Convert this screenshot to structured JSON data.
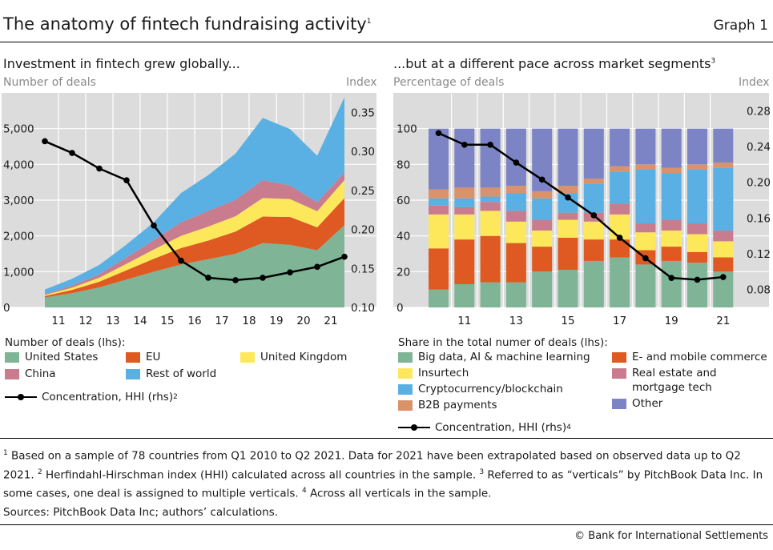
{
  "header": {
    "title": "The anatomy of fintech fundraising activity",
    "title_sup": "1",
    "graph_label": "Graph 1"
  },
  "left": {
    "title": "Investment in fintech grew globally...",
    "lhs_label": "Number of deals",
    "rhs_label": "Index",
    "legend_title": "Number of deals (lhs):",
    "legend": [
      "United States",
      "EU",
      "United Kingdom",
      "China",
      "Rest of world"
    ],
    "line_legend": "Concentration, HHI (rhs)",
    "line_legend_sup": "2"
  },
  "right": {
    "title": "...but at a different pace across market segments",
    "title_sup": "3",
    "lhs_label": "Percentage of deals",
    "rhs_label": "Index",
    "legend_title": "Share in the total numer of deals (lhs):",
    "legend": [
      "Big data, AI & machine learning",
      "E- and mobile commerce",
      "Insurtech",
      "Real estate and",
      "mortgage tech",
      "Cryptocurrency/blockchain",
      "B2B payments",
      "Other"
    ],
    "line_legend": "Concentration, HHI (rhs)",
    "line_legend_sup": "4"
  },
  "chart_data": [
    {
      "type": "area",
      "stacked": true,
      "x": [
        2010,
        2011,
        2012,
        2013,
        2014,
        2015,
        2016,
        2017,
        2018,
        2019,
        2020,
        2021
      ],
      "x_tick_labels": [
        "11",
        "12",
        "13",
        "14",
        "15",
        "16",
        "17",
        "18",
        "19",
        "20",
        "21"
      ],
      "ylim_left": [
        0,
        6000
      ],
      "y_ticks_left": [
        "0",
        "1,000",
        "2,000",
        "3,000",
        "4,000",
        "5,000"
      ],
      "ylim_right": [
        0.1,
        0.375
      ],
      "y_ticks_right": [
        "0.10",
        "0.15",
        "0.20",
        "0.25",
        "0.30",
        "0.35"
      ],
      "grid": true,
      "series": [
        {
          "name": "United States",
          "color": "#7fb596",
          "values": [
            280,
            400,
            560,
            780,
            1000,
            1200,
            1350,
            1500,
            1800,
            1750,
            1600,
            2300
          ]
        },
        {
          "name": "EU",
          "color": "#df5a22",
          "values": [
            40,
            90,
            160,
            260,
            360,
            460,
            520,
            620,
            740,
            780,
            640,
            760
          ]
        },
        {
          "name": "United Kingdom",
          "color": "#fde85b",
          "values": [
            30,
            60,
            110,
            180,
            260,
            340,
            390,
            430,
            520,
            500,
            450,
            500
          ]
        },
        {
          "name": "China",
          "color": "#c97c8e",
          "values": [
            20,
            60,
            100,
            180,
            260,
            380,
            440,
            460,
            500,
            380,
            250,
            220
          ]
        },
        {
          "name": "Rest of world",
          "color": "#5ab0e3",
          "values": [
            130,
            190,
            260,
            360,
            500,
            820,
            1000,
            1290,
            1740,
            1580,
            1300,
            2100
          ]
        }
      ],
      "line": {
        "name": "Concentration, HHI (rhs)",
        "axis": "right",
        "values": [
          0.313,
          0.298,
          0.278,
          0.263,
          0.205,
          0.16,
          0.138,
          0.135,
          0.138,
          0.145,
          0.152,
          0.165
        ]
      }
    },
    {
      "type": "bar",
      "stacked": true,
      "categories": [
        "2010",
        "2011",
        "2012",
        "2013",
        "2014",
        "2015",
        "2016",
        "2017",
        "2018",
        "2019",
        "2020",
        "2021"
      ],
      "x_tick_labels": [
        "11",
        "13",
        "15",
        "17",
        "19",
        "21"
      ],
      "ylim_left": [
        0,
        120
      ],
      "y_ticks_left": [
        "0",
        "20",
        "40",
        "60",
        "80",
        "100"
      ],
      "ylim_right": [
        0.06,
        0.3
      ],
      "y_ticks_right": [
        "0.08",
        "0.12",
        "0.16",
        "0.20",
        "0.24",
        "0.28"
      ],
      "grid": true,
      "series": [
        {
          "name": "Big data, AI & machine learning",
          "color": "#7fb596",
          "values": [
            10,
            13,
            14,
            14,
            20,
            21,
            26,
            28,
            24,
            26,
            25,
            20
          ]
        },
        {
          "name": "E- and mobile commerce",
          "color": "#df5a22",
          "values": [
            23,
            25,
            26,
            22,
            14,
            18,
            12,
            10,
            8,
            8,
            6,
            8
          ]
        },
        {
          "name": "Insurtech",
          "color": "#fde85b",
          "values": [
            19,
            14,
            14,
            12,
            9,
            10,
            10,
            14,
            10,
            9,
            10,
            9
          ]
        },
        {
          "name": "Real estate and mortgage tech",
          "color": "#c97c8e",
          "values": [
            5,
            4,
            5,
            6,
            6,
            4,
            5,
            6,
            5,
            6,
            6,
            6
          ]
        },
        {
          "name": "Cryptocurrency/blockchain",
          "color": "#5ab0e3",
          "values": [
            4,
            5,
            3,
            10,
            12,
            11,
            16,
            18,
            30,
            26,
            30,
            35
          ]
        },
        {
          "name": "B2B payments",
          "color": "#d9926a",
          "values": [
            5,
            6,
            5,
            4,
            4,
            4,
            3,
            3,
            3,
            3,
            3,
            3
          ]
        },
        {
          "name": "Other",
          "color": "#7d84c5",
          "values": [
            34,
            33,
            33,
            32,
            35,
            32,
            28,
            21,
            20,
            22,
            20,
            19
          ]
        }
      ],
      "line": {
        "name": "Concentration, HHI (rhs)",
        "axis": "right",
        "values": [
          0.255,
          0.242,
          0.242,
          0.222,
          0.203,
          0.183,
          0.163,
          0.138,
          0.115,
          0.093,
          0.091,
          0.094
        ]
      }
    }
  ],
  "footer": {
    "fn1_sup": "1",
    "fn1": " Based on a sample of 78 countries from Q1 2010 to Q2 2021. Data for 2021 have been extrapolated based on observed data up to Q2 2021. ",
    "fn2_sup": "2",
    "fn2": " Herfindahl-Hirschman index (HHI) calculated across all countries in the sample. ",
    "fn3_sup": "3",
    "fn3": " Referred to as “verticals” by PitchBook Data Inc. In some cases, one deal is assigned to multiple verticals. ",
    "fn4_sup": "4",
    "fn4": " Across all verticals in the sample.",
    "sources": "Sources: PitchBook Data Inc; authors’ calculations.",
    "copyright": "© Bank for International Settlements"
  }
}
